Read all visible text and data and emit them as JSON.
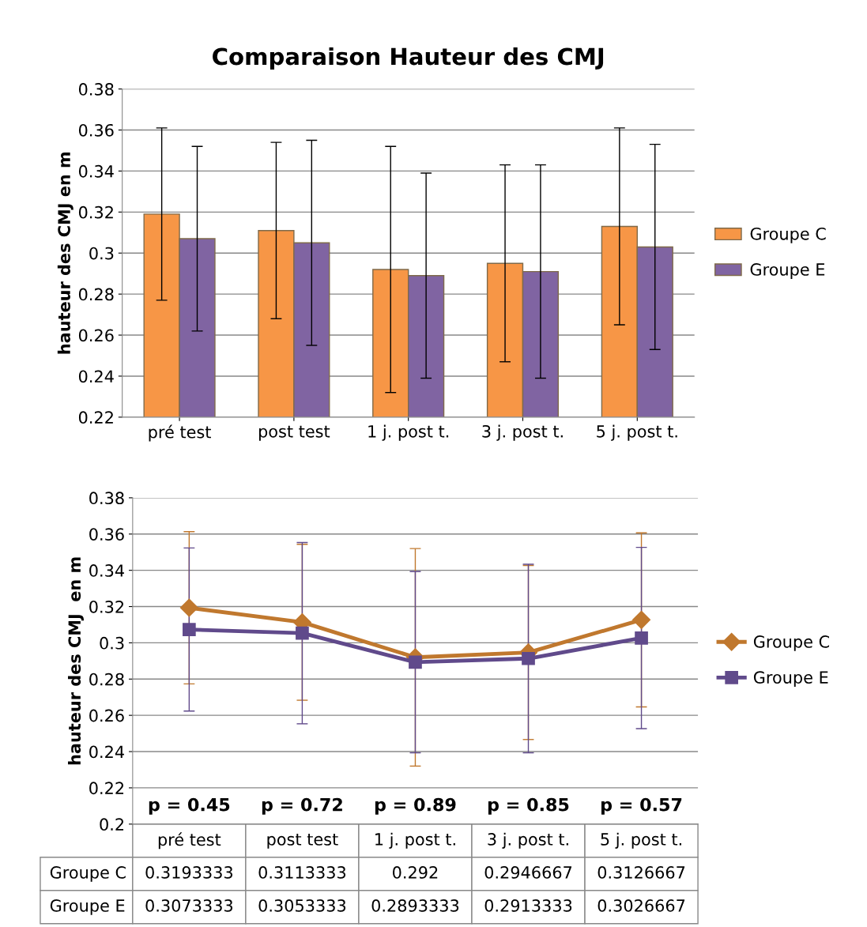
{
  "chart_data": [
    {
      "type": "bar",
      "title": "Comparaison Hauteur des CMJ",
      "ylabel": "hauteur des CMJ en m",
      "categories": [
        "pré test",
        "post test",
        "1 j. post t.",
        "3 j. post t.",
        "5 j. post t."
      ],
      "series": [
        {
          "name": "Groupe C",
          "color": "#f79646",
          "values": [
            0.319,
            0.311,
            0.292,
            0.295,
            0.313
          ],
          "errors": [
            0.042,
            0.043,
            0.06,
            0.048,
            0.048
          ]
        },
        {
          "name": "Groupe E",
          "color": "#8064a2",
          "values": [
            0.307,
            0.305,
            0.289,
            0.291,
            0.303
          ],
          "errors": [
            0.045,
            0.05,
            0.05,
            0.052,
            0.05
          ]
        }
      ],
      "ylim": [
        0.22,
        0.38
      ],
      "yticks": [
        0.22,
        0.24,
        0.26,
        0.28,
        0.3,
        0.32,
        0.34,
        0.36,
        0.38
      ],
      "grid": "y",
      "legend": "right"
    },
    {
      "type": "line",
      "ylabel": "hauteur des CMJ  en m",
      "categories": [
        "pré test",
        "post test",
        "1 j. post t.",
        "3 j. post t.",
        "5 j. post t."
      ],
      "series": [
        {
          "name": "Groupe C",
          "color": "#c0782e",
          "marker": "diamond",
          "values": [
            0.3193333,
            0.3113333,
            0.292,
            0.2946667,
            0.3126667
          ],
          "errors": [
            0.042,
            0.043,
            0.06,
            0.048,
            0.048
          ]
        },
        {
          "name": "Groupe E",
          "color": "#604a8b",
          "marker": "square",
          "values": [
            0.3073333,
            0.3053333,
            0.2893333,
            0.2913333,
            0.3026667
          ],
          "errors": [
            0.045,
            0.05,
            0.05,
            0.052,
            0.05
          ]
        }
      ],
      "ylim": [
        0.2,
        0.38
      ],
      "yticks": [
        0.2,
        0.22,
        0.24,
        0.26,
        0.28,
        0.3,
        0.32,
        0.34,
        0.36,
        0.38
      ],
      "grid": "y",
      "legend": "right",
      "data_labels": true,
      "tick_labels": "y",
      "annotations": [
        "p = 0.45",
        "p = 0.72",
        "p = 0.89",
        "p = 0.85",
        "p = 0.57"
      ]
    }
  ]
}
